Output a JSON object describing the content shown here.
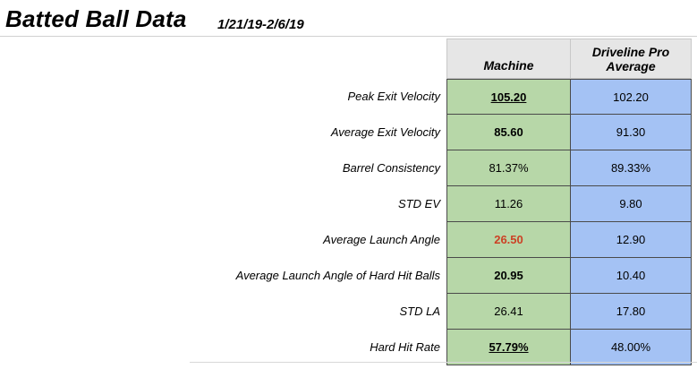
{
  "title": "Batted Ball Data",
  "date_range": "1/21/19-2/6/19",
  "columns": {
    "machine": "Machine",
    "driveline_line1": "Driveline Pro",
    "driveline_line2": "Average"
  },
  "rows": [
    {
      "label": "Peak Exit Velocity",
      "machine": "105.20",
      "driveline": "102.20"
    },
    {
      "label": "Average Exit Velocity",
      "machine": "85.60",
      "driveline": "91.30"
    },
    {
      "label": "Barrel Consistency",
      "machine": "81.37%",
      "driveline": "89.33%"
    },
    {
      "label": "STD EV",
      "machine": "11.26",
      "driveline": "9.80"
    },
    {
      "label": "Average Launch Angle",
      "machine": "26.50",
      "driveline": "12.90"
    },
    {
      "label": "Average Launch Angle of Hard Hit Balls",
      "machine": "20.95",
      "driveline": "10.40"
    },
    {
      "label": "STD LA",
      "machine": "26.41",
      "driveline": "17.80"
    },
    {
      "label": "Hard Hit Rate",
      "machine": "57.79%",
      "driveline": "48.00%"
    }
  ],
  "colors": {
    "machine_fill": "#b7d7a8",
    "driveline_fill": "#a4c2f4",
    "highlight_red": "#cc4125"
  }
}
